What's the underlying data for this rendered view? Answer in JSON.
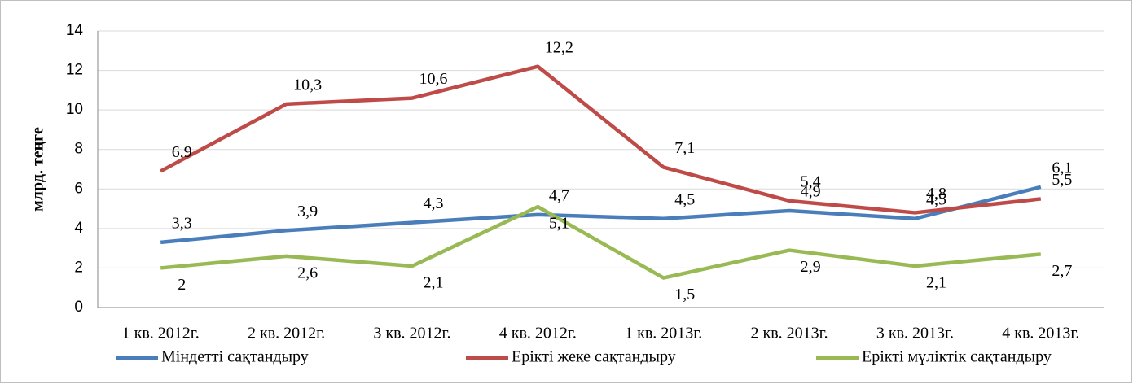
{
  "chart_data": {
    "type": "line",
    "y_label": "млрд. теңге",
    "categories": [
      "1 кв. 2012г.",
      "2 кв. 2012г.",
      "3 кв. 2012г.",
      "4 кв. 2012г.",
      "1 кв. 2013г.",
      "2 кв. 2013г.",
      "3 кв. 2013г.",
      "4 кв. 2013г."
    ],
    "series": [
      {
        "name": "Міндетті сақтандыру",
        "color": "#4a7ebb",
        "values": [
          3.3,
          3.9,
          4.3,
          4.7,
          4.5,
          4.9,
          4.5,
          6.1
        ],
        "value_labels": [
          "3,3",
          "3,9",
          "4,3",
          "4,7",
          "4,5",
          "4,9",
          "4,5",
          "6,1"
        ]
      },
      {
        "name": "Ерікті жеке сақтандыру",
        "color": "#be4b48",
        "values": [
          6.9,
          10.3,
          10.6,
          12.2,
          7.1,
          5.4,
          4.8,
          5.5
        ],
        "value_labels": [
          "6,9",
          "10,3",
          "10,6",
          "12,2",
          "7,1",
          "5,4",
          "4,8",
          "5,5"
        ]
      },
      {
        "name": "Ерікті мүліктік сақтандыру",
        "color": "#98b954",
        "values": [
          2,
          2.6,
          2.1,
          5.1,
          1.5,
          2.9,
          2.1,
          2.7
        ],
        "value_labels": [
          "2",
          "2,6",
          "2,1",
          "5,1",
          "1,5",
          "2,9",
          "2,1",
          "2,7"
        ]
      }
    ],
    "ylim": [
      0,
      14
    ],
    "yticks": [
      0,
      2,
      4,
      6,
      8,
      10,
      12,
      14
    ],
    "grid": true,
    "legend": "bottom"
  }
}
